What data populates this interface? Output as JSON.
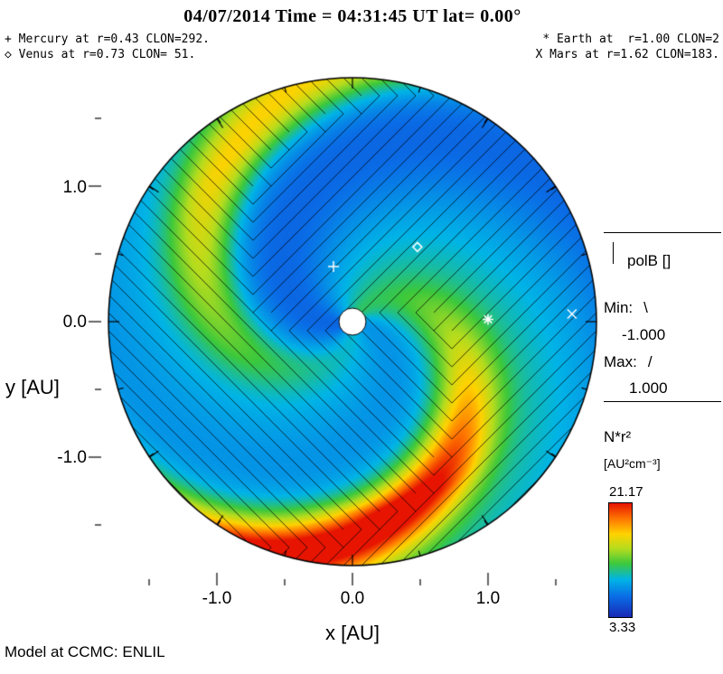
{
  "title": "04/07/2014 Time = 04:31:45 UT lat= 0.00°",
  "annotations": {
    "mercury": "+ Mercury at r=0.43 CLON=292.",
    "venus": "◇ Venus at r=0.73 CLON= 51.",
    "earth": "* Earth at  r=1.00 CLON=2",
    "mars": "X Mars at r=1.62 CLON=183."
  },
  "axes": {
    "xlabel": "x [AU]",
    "ylabel": "y [AU]",
    "x_tick_labels": [
      "-1.0",
      "0.0",
      "1.0"
    ],
    "y_tick_labels": [
      "1.0",
      "0.0",
      "-1.0"
    ]
  },
  "legend": {
    "polb_title": "polB []",
    "min_label": "Min:",
    "min_symbol": "\\",
    "min_value": "-1.000",
    "max_label": "Max:",
    "max_symbol": "/",
    "max_value": "1.000"
  },
  "colorbar": {
    "quantity": "N*r²",
    "units": "[AU²cm⁻³]",
    "max_label": "21.17",
    "min_label": "3.33"
  },
  "footer": "Model at CCMC: ENLIL",
  "chart_data": {
    "type": "heatmap",
    "projection": "polar-ecliptic-plane",
    "title": "04/07/2014 Time = 04:31:45 UT lat= 0.00°",
    "xlabel": "x [AU]",
    "ylabel": "y [AU]",
    "x_ticks": [
      -1.0,
      0.0,
      1.0
    ],
    "y_ticks": [
      -1.0,
      0.0,
      1.0
    ],
    "r_max_au": 1.8,
    "quantity": "N*r²",
    "units": "AU²cm⁻³",
    "colorbar_min": 3.33,
    "colorbar_max": 21.17,
    "polB_min": -1.0,
    "polB_max": 1.0,
    "polB_neg_hatch": "\\",
    "polB_pos_hatch": "/",
    "model": "ENLIL",
    "center": "CCMC",
    "planets": [
      {
        "name": "Mercury",
        "symbol": "+",
        "r_au": 0.43,
        "clon": 292,
        "plot_angle_deg": 109
      },
      {
        "name": "Venus",
        "symbol": "◇",
        "r_au": 0.73,
        "clon": 51,
        "plot_angle_deg": 49
      },
      {
        "name": "Earth",
        "symbol": "*",
        "r_au": 1.0,
        "clon": 2,
        "plot_angle_deg": 1
      },
      {
        "name": "Mars",
        "symbol": "X",
        "r_au": 1.62,
        "clon": 183,
        "plot_angle_deg": 2
      }
    ],
    "colormap": [
      [
        0.0,
        "#1828b4"
      ],
      [
        0.18,
        "#0a6ce6"
      ],
      [
        0.33,
        "#00b4e6"
      ],
      [
        0.47,
        "#3cc83c"
      ],
      [
        0.6,
        "#b4dc1e"
      ],
      [
        0.73,
        "#ffd200"
      ],
      [
        0.86,
        "#ff7800"
      ],
      [
        1.0,
        "#e61400"
      ]
    ],
    "spiral_field": {
      "winding_rad_per_au": 1.55,
      "background": 4.8,
      "polarity_phase_rad": 0.9,
      "arms": [
        {
          "phase_rad": 0.9,
          "width_rad": 0.3,
          "peak_amp": 12.0,
          "base_amp": 4.0,
          "base_width_rad": 0.55,
          "radial_onset_au": 0.15,
          "radial_span_au": 1.25,
          "radial_pow": 1.8
        },
        {
          "phase_rad": 4.55,
          "width_rad": 0.3,
          "peak_amp": 7.0,
          "base_amp": 2.8,
          "base_width_rad": 0.55,
          "radial_onset_au": 0.2,
          "radial_span_au": 1.3,
          "radial_pow": 1.2
        }
      ],
      "shoulders": [
        {
          "phase_rad": 2.0,
          "width_rad": 0.85,
          "amp": 4.2
        },
        {
          "phase_rad": 5.5,
          "width_rad": 0.8,
          "amp": 3.2
        }
      ]
    }
  }
}
